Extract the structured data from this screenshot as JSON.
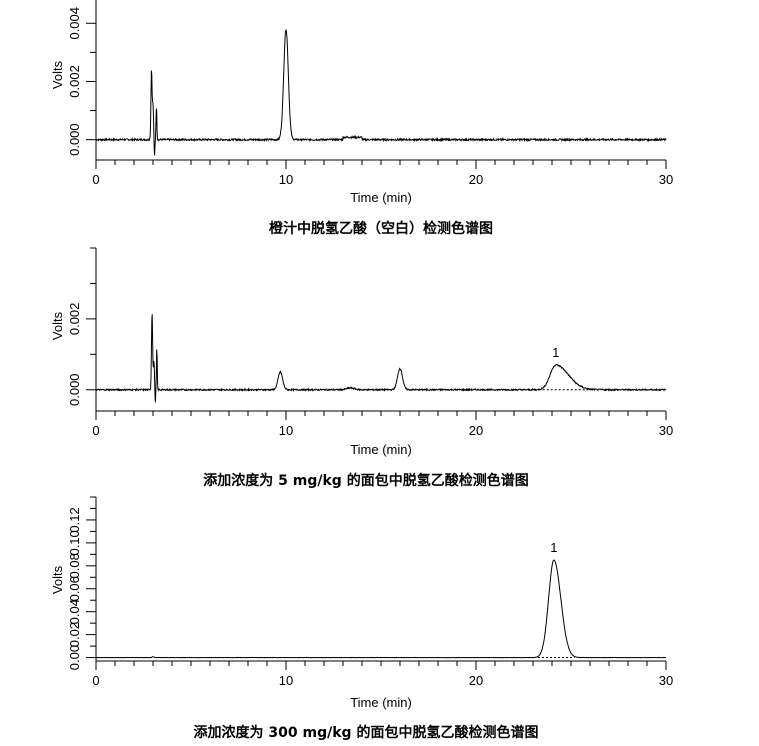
{
  "chart_data": [
    {
      "type": "line",
      "title": "橙汁中脱氢乙酸（空白）检测色谱图",
      "xlabel": "Time (min)",
      "ylabel": "Volts",
      "xlim": [
        0,
        30
      ],
      "ylim": [
        -0.0007,
        0.0048
      ],
      "xticks": [
        0,
        10,
        20,
        30
      ],
      "yticks": [
        0.0,
        0.002,
        0.004
      ],
      "ytick_labels": [
        "0.000",
        "0.002",
        "0.004"
      ],
      "yminor": 0.001,
      "peaks": [
        {
          "rt": 2.92,
          "h": 0.0024,
          "w": 0.03
        },
        {
          "rt": 3.0,
          "h": 0.0012,
          "w": 0.03
        },
        {
          "rt": 3.08,
          "h": -0.0006,
          "w": 0.02
        },
        {
          "rt": 3.18,
          "h": 0.0012,
          "w": 0.02
        },
        {
          "rt": 10.0,
          "h": 0.0038,
          "w": 0.12
        }
      ],
      "noise": 3e-05
    },
    {
      "type": "line",
      "title": "添加浓度为 5 mg/kg 的面包中脱氢乙酸检测色谱图",
      "xlabel": "Time (min)",
      "ylabel": "Volts",
      "xlim": [
        0,
        30
      ],
      "ylim": [
        -0.0006,
        0.004
      ],
      "xticks": [
        0,
        10,
        20,
        30
      ],
      "yticks": [
        0.0,
        0.002
      ],
      "ytick_labels": [
        "0.000",
        "0.002"
      ],
      "yminor": 0.001,
      "peaks": [
        {
          "rt": 2.95,
          "h": 0.0022,
          "w": 0.03
        },
        {
          "rt": 3.05,
          "h": 0.0008,
          "w": 0.03
        },
        {
          "rt": 3.12,
          "h": -0.0004,
          "w": 0.02
        },
        {
          "rt": 3.2,
          "h": 0.0012,
          "w": 0.02
        },
        {
          "rt": 9.7,
          "h": 0.0005,
          "w": 0.12
        },
        {
          "rt": 13.4,
          "h": 5e-05,
          "w": 0.2
        },
        {
          "rt": 16.0,
          "h": 0.0006,
          "w": 0.13
        },
        {
          "rt": 24.2,
          "h": 0.0007,
          "w": 0.3,
          "tail": 2.2,
          "label": "1"
        }
      ],
      "noise": 2e-05
    },
    {
      "type": "line",
      "title": "添加浓度为 300 mg/kg 的面包中脱氢乙酸检测色谱图",
      "xlabel": "Time (min)",
      "ylabel": "Volts",
      "xlim": [
        0,
        30
      ],
      "ylim": [
        -0.003,
        0.14
      ],
      "xticks": [
        0,
        10,
        20,
        30
      ],
      "yticks": [
        0.0,
        0.02,
        0.04,
        0.06,
        0.08,
        0.1,
        0.12
      ],
      "ytick_labels": [
        "0.00",
        "0.02",
        "0.04",
        "0.06",
        "0.08",
        "0.10",
        "0.12"
      ],
      "yminor": 0.01,
      "peaks": [
        {
          "rt": 3.0,
          "h": 0.0008,
          "w": 0.05
        },
        {
          "rt": 24.1,
          "h": 0.085,
          "w": 0.28,
          "tail": 1.3,
          "label": "1"
        }
      ],
      "noise": 0.0001
    }
  ]
}
